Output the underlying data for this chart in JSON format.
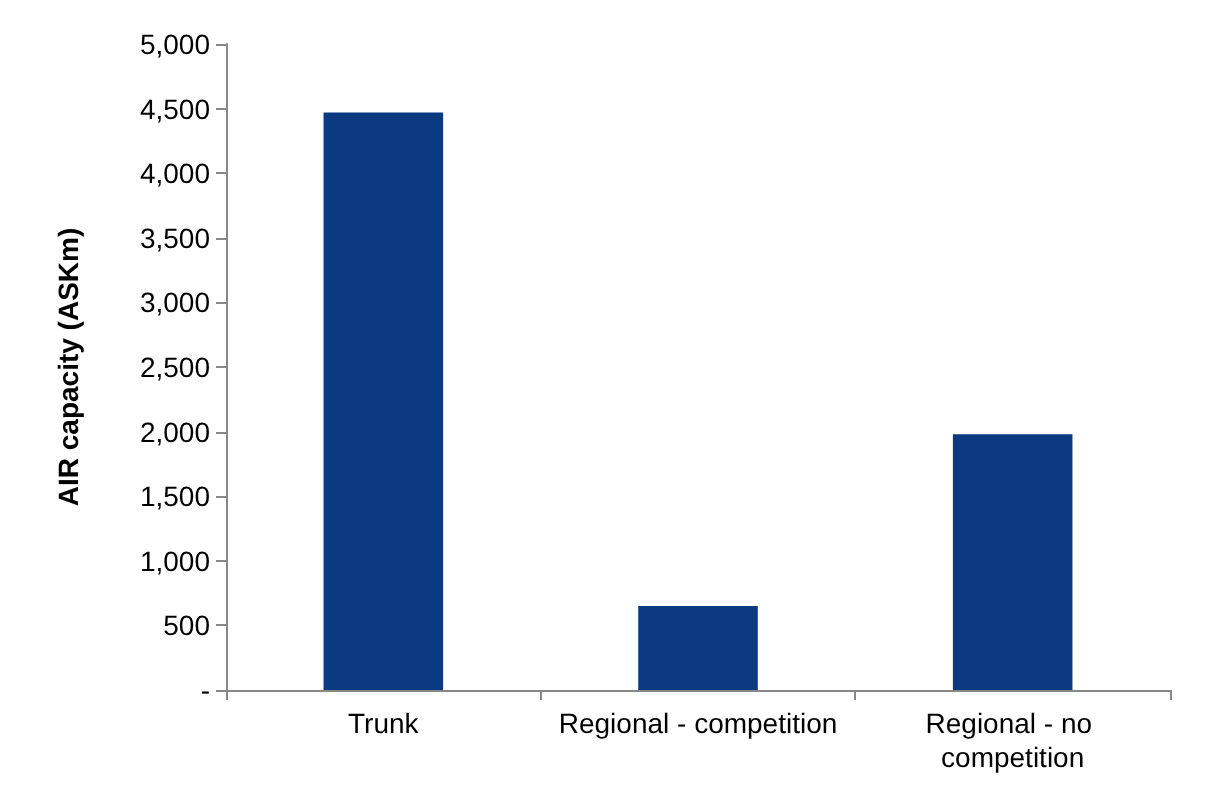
{
  "chart_data": {
    "type": "bar",
    "ylabel": "AIR capacity (ASKm)",
    "categories": [
      "Trunk",
      "Regional - competition",
      "Regional - no competition"
    ],
    "values": [
      4470,
      650,
      1980
    ],
    "color": "#0b3a82",
    "ylim": [
      0,
      5000
    ],
    "yticks": [
      {
        "value": 0,
        "label": "-"
      },
      {
        "value": 500,
        "label": "500"
      },
      {
        "value": 1000,
        "label": "1,000"
      },
      {
        "value": 1500,
        "label": "1,500"
      },
      {
        "value": 2000,
        "label": "2,000"
      },
      {
        "value": 2500,
        "label": "2,500"
      },
      {
        "value": 3000,
        "label": "3,000"
      },
      {
        "value": 3500,
        "label": "3,500"
      },
      {
        "value": 4000,
        "label": "4,000"
      },
      {
        "value": 4500,
        "label": "4,500"
      },
      {
        "value": 5000,
        "label": "5,000"
      }
    ],
    "grid": false
  }
}
